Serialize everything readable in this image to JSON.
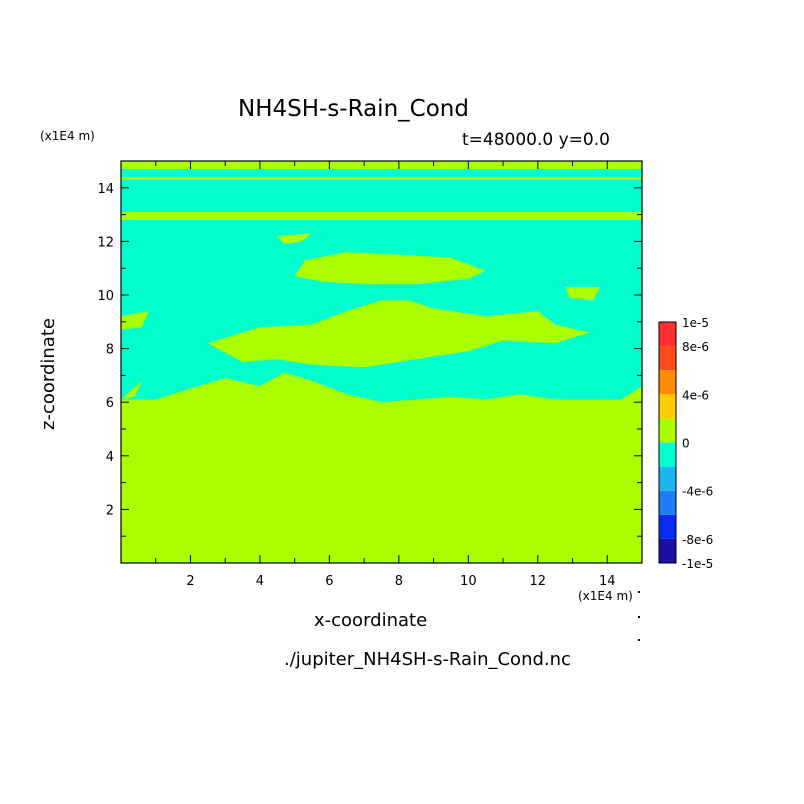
{
  "chart_data": {
    "type": "heatmap",
    "title": "NH4SH-s-Rain_Cond",
    "subtitle": "t=48000.0 y=0.0",
    "xlabel": "x-coordinate",
    "ylabel": "z-coordinate",
    "x_unit": "(x1E4 m)",
    "y_unit": "(x1E4 m)",
    "xlim": [
      0,
      15
    ],
    "ylim": [
      0,
      15
    ],
    "xticks": [
      "2",
      "4",
      "6",
      "8",
      "10",
      "12",
      "14"
    ],
    "yticks": [
      "2",
      "4",
      "6",
      "8",
      "10",
      "12",
      "14"
    ],
    "colorbar": {
      "labels": [
        "1e-5",
        "8e-6",
        "4e-6",
        "0",
        "-4e-6",
        "-8e-6",
        "-1e-5"
      ],
      "bins": [
        {
          "lo": -1e-05,
          "hi": -8e-06,
          "color": "#1a0fa6"
        },
        {
          "lo": -8e-06,
          "hi": -6e-06,
          "color": "#0a2cf0"
        },
        {
          "lo": -6e-06,
          "hi": -4e-06,
          "color": "#1f7df5"
        },
        {
          "lo": -4e-06,
          "hi": -2e-06,
          "color": "#1fb5f0"
        },
        {
          "lo": -2e-06,
          "hi": 0,
          "color": "#00ffcc"
        },
        {
          "lo": 0,
          "hi": 2e-06,
          "color": "#aaff00"
        },
        {
          "lo": 2e-06,
          "hi": 4e-06,
          "color": "#ffcc00"
        },
        {
          "lo": 4e-06,
          "hi": 6e-06,
          "color": "#ff8c00"
        },
        {
          "lo": 6e-06,
          "hi": 8e-06,
          "color": "#ff4a1a"
        },
        {
          "lo": 8e-06,
          "hi": 1e-05,
          "color": "#ff3030"
        }
      ]
    },
    "regions": [
      {
        "value_bin": "0 to 2e-6",
        "color": "#aaff00",
        "polygon": [
          [
            0,
            0
          ],
          [
            15,
            0
          ],
          [
            15,
            6.1
          ],
          [
            12.5,
            6.1
          ],
          [
            11.5,
            6.3
          ],
          [
            10.5,
            6.1
          ],
          [
            9.5,
            6.2
          ],
          [
            7.5,
            6.0
          ],
          [
            6.5,
            6.3
          ],
          [
            5.5,
            6.8
          ],
          [
            4.7,
            7.1
          ],
          [
            4,
            6.6
          ],
          [
            3,
            6.9
          ],
          [
            2,
            6.5
          ],
          [
            1,
            6.1
          ],
          [
            0,
            6.1
          ]
        ]
      },
      {
        "value_bin": "0 to 2e-6",
        "color": "#aaff00",
        "polygon": [
          [
            2.5,
            8.2
          ],
          [
            4,
            8.8
          ],
          [
            5.5,
            8.9
          ],
          [
            6.5,
            9.4
          ],
          [
            7.5,
            9.8
          ],
          [
            8.3,
            9.8
          ],
          [
            9,
            9.5
          ],
          [
            10.5,
            9.2
          ],
          [
            12,
            9.4
          ],
          [
            12.5,
            8.9
          ],
          [
            13.5,
            8.6
          ],
          [
            12.5,
            8.2
          ],
          [
            11,
            8.3
          ],
          [
            10,
            7.9
          ],
          [
            8.5,
            7.6
          ],
          [
            7,
            7.3
          ],
          [
            5.5,
            7.4
          ],
          [
            4.5,
            7.6
          ],
          [
            3.5,
            7.5
          ]
        ]
      },
      {
        "value_bin": "0 to 2e-6",
        "color": "#aaff00",
        "polygon": [
          [
            5,
            10.7
          ],
          [
            5.3,
            11.3
          ],
          [
            6.5,
            11.6
          ],
          [
            8,
            11.5
          ],
          [
            9.5,
            11.4
          ],
          [
            10.5,
            10.9
          ],
          [
            10,
            10.6
          ],
          [
            8.5,
            10.4
          ],
          [
            7,
            10.4
          ],
          [
            5.8,
            10.5
          ]
        ]
      },
      {
        "value_bin": "0 to 2e-6",
        "color": "#aaff00",
        "polygon": [
          [
            0,
            12.8
          ],
          [
            15,
            12.8
          ],
          [
            15,
            13.1
          ],
          [
            0,
            13.1
          ]
        ]
      },
      {
        "value_bin": "0 to 2e-6",
        "color": "#aaff00",
        "polygon": [
          [
            0,
            14.3
          ],
          [
            15,
            14.3
          ],
          [
            15,
            14.4
          ],
          [
            0,
            14.4
          ]
        ]
      },
      {
        "value_bin": "0 to 2e-6",
        "color": "#aaff00",
        "polygon": [
          [
            0,
            14.7
          ],
          [
            15,
            14.7
          ],
          [
            15,
            15
          ],
          [
            0,
            15
          ]
        ]
      },
      {
        "value_bin": "0 to 2e-6",
        "color": "#aaff00",
        "polygon": [
          [
            4.5,
            12.2
          ],
          [
            5.5,
            12.3
          ],
          [
            5.2,
            12.0
          ],
          [
            4.7,
            11.9
          ]
        ]
      },
      {
        "value_bin": "0 to 2e-6",
        "color": "#aaff00",
        "polygon": [
          [
            12.8,
            10.3
          ],
          [
            13.8,
            10.3
          ],
          [
            13.6,
            9.8
          ],
          [
            12.9,
            9.9
          ]
        ]
      },
      {
        "value_bin": "0 to 2e-6",
        "color": "#aaff00",
        "polygon": [
          [
            0,
            9.2
          ],
          [
            0.8,
            9.4
          ],
          [
            0.6,
            8.8
          ],
          [
            0,
            8.7
          ]
        ]
      },
      {
        "value_bin": "0 to 2e-6",
        "color": "#aaff00",
        "polygon": [
          [
            0,
            6.1
          ],
          [
            0.6,
            6.8
          ],
          [
            0.4,
            6.2
          ]
        ]
      },
      {
        "value_bin": "0 to 2e-6",
        "color": "#aaff00",
        "polygon": [
          [
            14.4,
            6.1
          ],
          [
            15,
            6.6
          ],
          [
            15,
            6.1
          ]
        ]
      }
    ]
  }
}
